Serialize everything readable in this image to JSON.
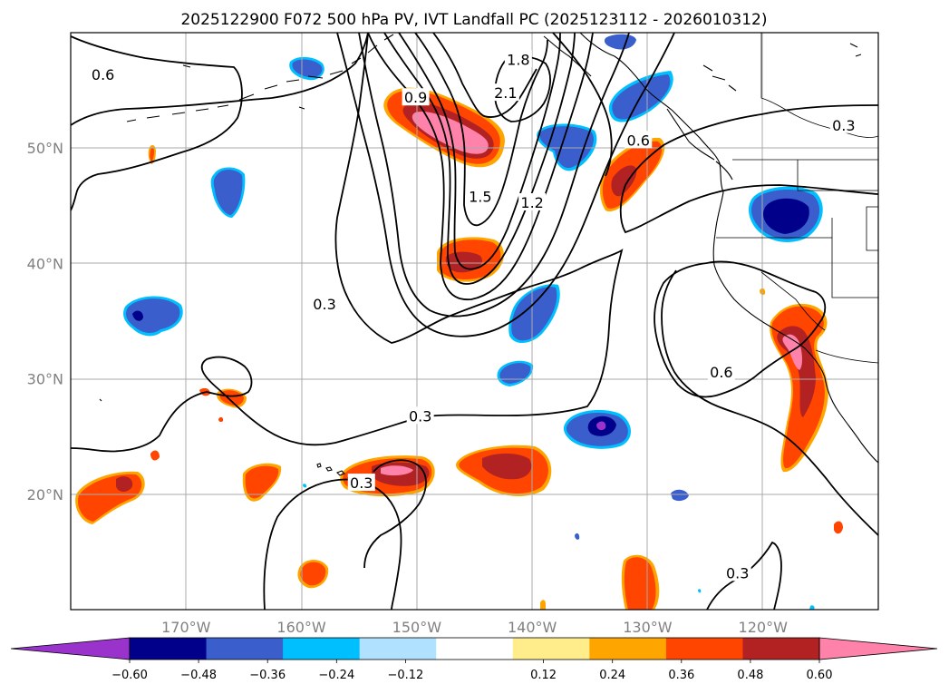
{
  "chart_data": {
    "type": "contour-map",
    "title": "2025122900 F072 500 hPa PV, IVT Landfall PC (2025123112 - 2026010312)",
    "projection": "PlateCarree",
    "lon_range": [
      -180,
      -110
    ],
    "lat_range": [
      10,
      60
    ],
    "x_ticks": [
      -170,
      -160,
      -150,
      -140,
      -130,
      -120
    ],
    "x_tick_labels": [
      "170°W",
      "160°W",
      "150°W",
      "140°W",
      "130°W",
      "120°W"
    ],
    "y_ticks": [
      20,
      30,
      40,
      50
    ],
    "y_tick_labels": [
      "20°N",
      "30°N",
      "40°N",
      "50°N"
    ],
    "colorbar": {
      "boundaries": [
        -0.72,
        -0.6,
        -0.48,
        -0.36,
        -0.24,
        -0.12,
        0.12,
        0.24,
        0.36,
        0.48,
        0.6,
        0.72
      ],
      "colors": [
        "#9933cc",
        "#00008b",
        "#3a5fcd",
        "#00bfff",
        "#b0e2ff",
        "#ffffff",
        "#ffec8b",
        "#ffa500",
        "#ff4500",
        "#b22222",
        "#ff82ab"
      ],
      "tick_values": [
        -0.6,
        -0.48,
        -0.36,
        -0.24,
        -0.12,
        0.12,
        0.24,
        0.36,
        0.48,
        0.6
      ],
      "tick_labels": [
        "−0.60",
        "−0.48",
        "−0.36",
        "−0.24",
        "−0.12",
        "0.12",
        "0.24",
        "0.36",
        "0.48",
        "0.60"
      ],
      "extend": "both"
    },
    "contour_labels": [
      {
        "text": "0.6",
        "lon": -177.2,
        "lat": 56.4
      },
      {
        "text": "1.8",
        "lon": -141.2,
        "lat": 57.7
      },
      {
        "text": "2.1",
        "lon": -142.3,
        "lat": 54.8
      },
      {
        "text": "0.9",
        "lon": -150.1,
        "lat": 54.4
      },
      {
        "text": "0.6",
        "lon": -130.8,
        "lat": 50.7
      },
      {
        "text": "0.3",
        "lon": -113.0,
        "lat": 52.0
      },
      {
        "text": "1.5",
        "lon": -144.5,
        "lat": 45.8
      },
      {
        "text": "1.2",
        "lon": -140.0,
        "lat": 45.3
      },
      {
        "text": "0.3",
        "lon": -158.0,
        "lat": 36.5
      },
      {
        "text": "0.6",
        "lon": -123.6,
        "lat": 30.6
      },
      {
        "text": "0.3",
        "lon": -149.7,
        "lat": 26.8
      },
      {
        "text": "0.3",
        "lon": -154.8,
        "lat": 21.0
      },
      {
        "text": "0.3",
        "lon": -122.2,
        "lat": 13.2
      }
    ]
  }
}
